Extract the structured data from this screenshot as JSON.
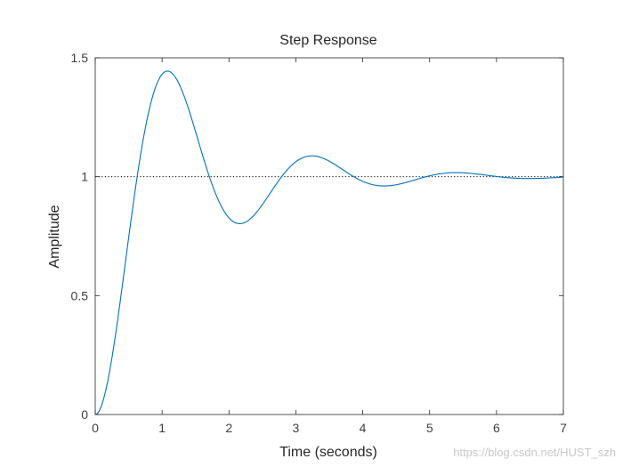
{
  "chart_data": {
    "type": "line",
    "title": "Step Response",
    "xlabel": "Time (seconds)",
    "ylabel": "Amplitude",
    "xlim": [
      0,
      7
    ],
    "ylim": [
      0,
      1.5
    ],
    "xticks": [
      0,
      1,
      2,
      3,
      4,
      5,
      6,
      7
    ],
    "yticks": [
      0,
      0.5,
      1,
      1.5
    ],
    "ytick_labels": [
      "0",
      "0.5",
      "1",
      "1.5"
    ],
    "grid": false,
    "reference_line": {
      "y": 1,
      "style": "dotted",
      "color": "#000000"
    },
    "series": [
      {
        "color": "#0072bd",
        "model": {
          "kind": "underdamped-second-order",
          "damping_ratio": 0.25,
          "peak_time": 1.08,
          "final_value": 1
        },
        "x": [
          0,
          0.1,
          0.2,
          0.3,
          0.4,
          0.5,
          0.6,
          0.7,
          0.8,
          0.9,
          1.0,
          1.08,
          1.2,
          1.4,
          1.6,
          1.8,
          2.0,
          2.16,
          2.4,
          2.6,
          2.8,
          3.0,
          3.24,
          3.5,
          3.8,
          4.0,
          4.32,
          4.6,
          5.0,
          5.4,
          5.8,
          6.0,
          6.48,
          7.0
        ],
        "y": [
          0,
          0.04,
          0.15,
          0.31,
          0.52,
          0.74,
          0.95,
          1.13,
          1.28,
          1.38,
          1.43,
          1.44,
          1.41,
          1.25,
          1.05,
          0.88,
          0.81,
          0.8,
          0.87,
          0.97,
          1.05,
          1.08,
          1.09,
          1.05,
          0.99,
          0.97,
          0.96,
          0.98,
          1.01,
          1.02,
          1.01,
          1.0,
          0.99,
          1.0
        ]
      }
    ]
  },
  "watermark": "https://blog.csdn.net/HUST_szh",
  "colors": {
    "line": "#0072bd",
    "axes": "#262626",
    "background": "#ffffff"
  }
}
